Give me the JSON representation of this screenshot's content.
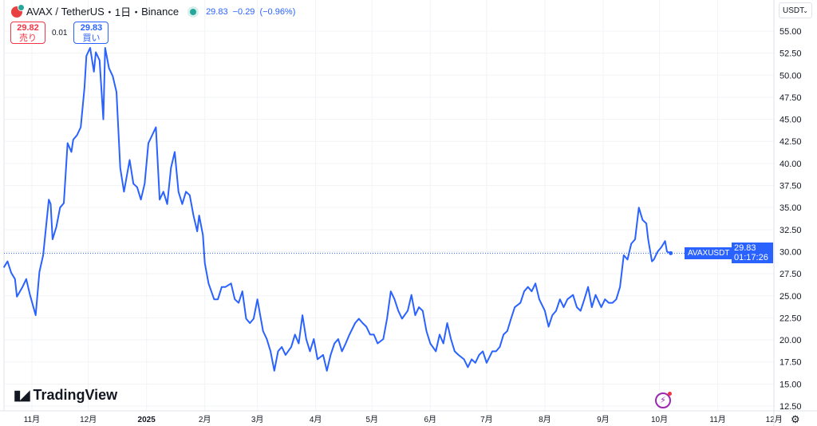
{
  "header": {
    "symbol": "AVAX",
    "sep": "/",
    "quote": "TetherUS",
    "interval": "・1日・",
    "exchange": "Binance",
    "last": "29.83",
    "change": "−0.29",
    "change_pct": "(−0.96%)"
  },
  "trade": {
    "sell_price": "29.82",
    "sell_label": "売り",
    "spread": "0.01",
    "buy_price": "29.83",
    "buy_label": "買い"
  },
  "currency": "USDT",
  "price_label": {
    "symbol": "AVAXUSDT",
    "price": "29.83",
    "countdown": "01:17:26"
  },
  "branding": "TradingView",
  "colors": {
    "line": "#2962ff",
    "label": "#2962ff",
    "up": "#26a69a",
    "down": "#f23645"
  },
  "icons": {
    "bolt": "lightning-icon",
    "settings": "gear-icon",
    "dropdown": "chevron-down-icon"
  },
  "chart_data": {
    "type": "line",
    "title": "",
    "xlabel": "",
    "ylabel": "",
    "ylim": [
      12.5,
      55
    ],
    "grid": true,
    "yticks": [
      "55.00",
      "52.50",
      "50.00",
      "47.50",
      "45.00",
      "42.50",
      "40.00",
      "37.50",
      "35.00",
      "32.50",
      "30.00",
      "27.50",
      "25.00",
      "22.50",
      "20.00",
      "17.50",
      "15.00",
      "12.50"
    ],
    "xticks": [
      {
        "date": "2024-11-01",
        "label": "11月"
      },
      {
        "date": "2024-12-01",
        "label": "12月"
      },
      {
        "date": "2025-01-01",
        "label": "2025",
        "bold": true
      },
      {
        "date": "2025-02-01",
        "label": "2月"
      },
      {
        "date": "2025-03-01",
        "label": "3月"
      },
      {
        "date": "2025-04-01",
        "label": "4月"
      },
      {
        "date": "2025-05-01",
        "label": "5月"
      },
      {
        "date": "2025-06-01",
        "label": "6月"
      },
      {
        "date": "2025-07-01",
        "label": "7月"
      },
      {
        "date": "2025-08-01",
        "label": "8月"
      },
      {
        "date": "2025-09-01",
        "label": "9月"
      },
      {
        "date": "2025-10-01",
        "label": "10月"
      },
      {
        "date": "2025-11-01",
        "label": "11月"
      },
      {
        "date": "2025-12-01",
        "label": "12月"
      }
    ],
    "series": [
      {
        "points": [
          [
            "2024-10-17",
            28.2
          ],
          [
            "2024-10-19",
            28.9
          ],
          [
            "2024-10-21",
            27.6
          ],
          [
            "2024-10-23",
            26.9
          ],
          [
            "2024-10-24",
            24.9
          ],
          [
            "2024-10-27",
            26.0
          ],
          [
            "2024-10-29",
            26.9
          ],
          [
            "2024-10-31",
            25.1
          ],
          [
            "2024-11-03",
            22.8
          ],
          [
            "2024-11-05",
            27.7
          ],
          [
            "2024-11-07",
            29.6
          ],
          [
            "2024-11-10",
            35.9
          ],
          [
            "2024-11-11",
            35.4
          ],
          [
            "2024-11-12",
            31.4
          ],
          [
            "2024-11-14",
            32.8
          ],
          [
            "2024-11-16",
            35.0
          ],
          [
            "2024-11-18",
            35.5
          ],
          [
            "2024-11-20",
            42.3
          ],
          [
            "2024-11-22",
            41.3
          ],
          [
            "2024-11-23",
            42.7
          ],
          [
            "2024-11-25",
            43.2
          ],
          [
            "2024-11-27",
            44.1
          ],
          [
            "2024-11-29",
            48.6
          ],
          [
            "2024-11-30",
            52.2
          ],
          [
            "2024-12-02",
            53.1
          ],
          [
            "2024-12-04",
            50.4
          ],
          [
            "2024-12-05",
            52.6
          ],
          [
            "2024-12-07",
            51.7
          ],
          [
            "2024-12-09",
            45.0
          ],
          [
            "2024-12-10",
            53.1
          ],
          [
            "2024-12-12",
            50.8
          ],
          [
            "2024-12-14",
            49.9
          ],
          [
            "2024-12-16",
            48.1
          ],
          [
            "2024-12-18",
            39.5
          ],
          [
            "2024-12-20",
            36.8
          ],
          [
            "2024-12-23",
            40.4
          ],
          [
            "2024-12-25",
            37.7
          ],
          [
            "2024-12-27",
            37.3
          ],
          [
            "2024-12-29",
            35.9
          ],
          [
            "2024-12-31",
            37.7
          ],
          [
            "2025-01-02",
            42.3
          ],
          [
            "2025-01-04",
            43.2
          ],
          [
            "2025-01-06",
            44.1
          ],
          [
            "2025-01-08",
            35.9
          ],
          [
            "2025-01-10",
            36.8
          ],
          [
            "2025-01-12",
            35.4
          ],
          [
            "2025-01-14",
            39.5
          ],
          [
            "2025-01-16",
            41.3
          ],
          [
            "2025-01-18",
            36.8
          ],
          [
            "2025-01-20",
            35.4
          ],
          [
            "2025-01-22",
            36.8
          ],
          [
            "2025-01-24",
            36.4
          ],
          [
            "2025-01-26",
            34.1
          ],
          [
            "2025-01-28",
            32.3
          ],
          [
            "2025-01-29",
            34.1
          ],
          [
            "2025-01-31",
            31.9
          ],
          [
            "2025-02-01",
            28.7
          ],
          [
            "2025-02-03",
            26.4
          ],
          [
            "2025-02-06",
            24.6
          ],
          [
            "2025-02-08",
            24.6
          ],
          [
            "2025-02-10",
            26.0
          ],
          [
            "2025-02-12",
            26.0
          ],
          [
            "2025-02-15",
            26.4
          ],
          [
            "2025-02-17",
            24.6
          ],
          [
            "2025-02-19",
            24.2
          ],
          [
            "2025-02-21",
            25.5
          ],
          [
            "2025-02-23",
            22.4
          ],
          [
            "2025-02-25",
            21.9
          ],
          [
            "2025-02-27",
            22.4
          ],
          [
            "2025-03-01",
            24.6
          ],
          [
            "2025-03-04",
            21.0
          ],
          [
            "2025-03-06",
            20.1
          ],
          [
            "2025-03-08",
            18.7
          ],
          [
            "2025-03-10",
            16.5
          ],
          [
            "2025-03-12",
            18.7
          ],
          [
            "2025-03-14",
            19.2
          ],
          [
            "2025-03-16",
            18.3
          ],
          [
            "2025-03-19",
            19.2
          ],
          [
            "2025-03-21",
            20.6
          ],
          [
            "2025-03-23",
            19.6
          ],
          [
            "2025-03-25",
            22.8
          ],
          [
            "2025-03-27",
            20.1
          ],
          [
            "2025-03-29",
            18.7
          ],
          [
            "2025-03-31",
            20.1
          ],
          [
            "2025-04-02",
            17.8
          ],
          [
            "2025-04-05",
            18.3
          ],
          [
            "2025-04-07",
            16.5
          ],
          [
            "2025-04-09",
            18.3
          ],
          [
            "2025-04-11",
            19.6
          ],
          [
            "2025-04-13",
            20.1
          ],
          [
            "2025-04-15",
            18.7
          ],
          [
            "2025-04-17",
            19.6
          ],
          [
            "2025-04-19",
            20.6
          ],
          [
            "2025-04-22",
            21.9
          ],
          [
            "2025-04-24",
            22.4
          ],
          [
            "2025-04-26",
            21.9
          ],
          [
            "2025-04-28",
            21.5
          ],
          [
            "2025-04-30",
            20.6
          ],
          [
            "2025-05-02",
            20.6
          ],
          [
            "2025-05-04",
            19.6
          ],
          [
            "2025-05-07",
            20.1
          ],
          [
            "2025-05-09",
            22.4
          ],
          [
            "2025-05-11",
            25.5
          ],
          [
            "2025-05-13",
            24.6
          ],
          [
            "2025-05-15",
            23.3
          ],
          [
            "2025-05-17",
            22.4
          ],
          [
            "2025-05-20",
            23.3
          ],
          [
            "2025-05-22",
            25.1
          ],
          [
            "2025-05-24",
            22.8
          ],
          [
            "2025-05-26",
            23.7
          ],
          [
            "2025-05-28",
            23.3
          ],
          [
            "2025-05-30",
            21.0
          ],
          [
            "2025-06-01",
            19.6
          ],
          [
            "2025-06-04",
            18.7
          ],
          [
            "2025-06-06",
            20.6
          ],
          [
            "2025-06-08",
            19.6
          ],
          [
            "2025-06-10",
            21.9
          ],
          [
            "2025-06-12",
            20.1
          ],
          [
            "2025-06-14",
            18.7
          ],
          [
            "2025-06-16",
            18.3
          ],
          [
            "2025-06-19",
            17.8
          ],
          [
            "2025-06-21",
            16.9
          ],
          [
            "2025-06-23",
            17.8
          ],
          [
            "2025-06-25",
            17.4
          ],
          [
            "2025-06-27",
            18.3
          ],
          [
            "2025-06-29",
            18.7
          ],
          [
            "2025-07-01",
            17.4
          ],
          [
            "2025-07-04",
            18.7
          ],
          [
            "2025-07-06",
            18.7
          ],
          [
            "2025-07-08",
            19.2
          ],
          [
            "2025-07-10",
            20.6
          ],
          [
            "2025-07-12",
            21.0
          ],
          [
            "2025-07-14",
            22.4
          ],
          [
            "2025-07-16",
            23.7
          ],
          [
            "2025-07-19",
            24.2
          ],
          [
            "2025-07-21",
            25.5
          ],
          [
            "2025-07-23",
            26.0
          ],
          [
            "2025-07-25",
            25.5
          ],
          [
            "2025-07-27",
            26.4
          ],
          [
            "2025-07-29",
            24.6
          ],
          [
            "2025-08-01",
            23.3
          ],
          [
            "2025-08-03",
            21.5
          ],
          [
            "2025-08-05",
            22.8
          ],
          [
            "2025-08-07",
            23.3
          ],
          [
            "2025-08-09",
            24.6
          ],
          [
            "2025-08-11",
            23.7
          ],
          [
            "2025-08-13",
            24.6
          ],
          [
            "2025-08-16",
            25.1
          ],
          [
            "2025-08-18",
            23.7
          ],
          [
            "2025-08-20",
            23.3
          ],
          [
            "2025-08-22",
            24.6
          ],
          [
            "2025-08-24",
            26.0
          ],
          [
            "2025-08-26",
            23.7
          ],
          [
            "2025-08-28",
            25.1
          ],
          [
            "2025-08-31",
            23.7
          ],
          [
            "2025-09-02",
            24.6
          ],
          [
            "2025-09-04",
            24.2
          ],
          [
            "2025-09-06",
            24.2
          ],
          [
            "2025-09-08",
            24.6
          ],
          [
            "2025-09-10",
            26.0
          ],
          [
            "2025-09-12",
            29.6
          ],
          [
            "2025-09-14",
            29.1
          ],
          [
            "2025-09-16",
            30.9
          ],
          [
            "2025-09-18",
            31.4
          ],
          [
            "2025-09-20",
            35.0
          ],
          [
            "2025-09-22",
            33.6
          ],
          [
            "2025-09-24",
            33.2
          ],
          [
            "2025-09-25",
            31.4
          ],
          [
            "2025-09-27",
            28.9
          ],
          [
            "2025-09-28",
            29.1
          ],
          [
            "2025-09-30",
            30.0
          ],
          [
            "2025-10-02",
            30.5
          ],
          [
            "2025-10-04",
            31.2
          ],
          [
            "2025-10-05",
            30.0
          ],
          [
            "2025-10-07",
            29.83
          ]
        ]
      }
    ],
    "last_value": 29.83
  }
}
